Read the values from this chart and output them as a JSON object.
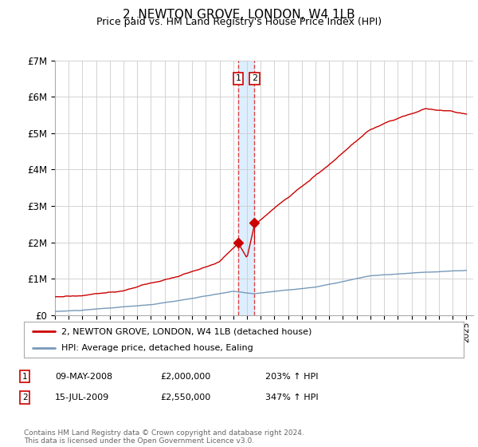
{
  "title": "2, NEWTON GROVE, LONDON, W4 1LB",
  "subtitle": "Price paid vs. HM Land Registry's House Price Index (HPI)",
  "title_fontsize": 11,
  "subtitle_fontsize": 9,
  "ylabel_ticks": [
    "£0",
    "£1M",
    "£2M",
    "£3M",
    "£4M",
    "£5M",
    "£6M",
    "£7M"
  ],
  "ytick_values": [
    0,
    1000000,
    2000000,
    3000000,
    4000000,
    5000000,
    6000000,
    7000000
  ],
  "ylim": [
    0,
    7000000
  ],
  "xlim_start": 1995.0,
  "xlim_end": 2025.5,
  "sale1_x": 2008.36,
  "sale1_y": 2000000,
  "sale2_x": 2009.54,
  "sale2_y": 2550000,
  "sale1_label": "1",
  "sale2_label": "2",
  "legend_line1": "2, NEWTON GROVE, LONDON, W4 1LB (detached house)",
  "legend_line2": "HPI: Average price, detached house, Ealing",
  "table_row1": [
    "1",
    "09-MAY-2008",
    "£2,000,000",
    "203% ↑ HPI"
  ],
  "table_row2": [
    "2",
    "15-JUL-2009",
    "£2,550,000",
    "347% ↑ HPI"
  ],
  "footer": "Contains HM Land Registry data © Crown copyright and database right 2024.\nThis data is licensed under the Open Government Licence v3.0.",
  "red_color": "#cc0000",
  "blue_color": "#7799bb",
  "vline_color": "#dd4444",
  "shade_color": "#ddeeff",
  "background_color": "#ffffff",
  "grid_color": "#cccccc"
}
